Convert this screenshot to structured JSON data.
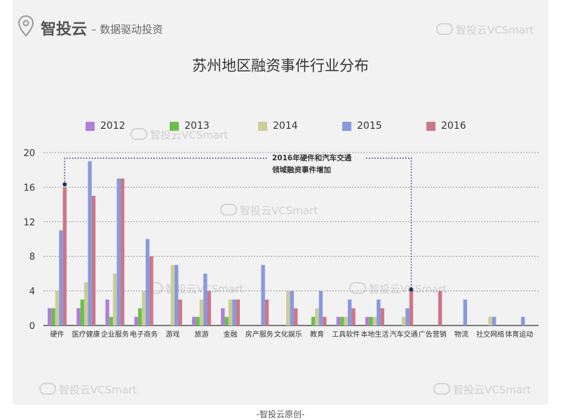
{
  "header": {
    "brand": "智投云",
    "slogan": "– 数据驱动投资",
    "watermark": "智投云VCSmart"
  },
  "footer": "-智投云原创-",
  "annotation": {
    "line1": "2016年硬件和汽车交通",
    "line2": "领域融资事件增加"
  },
  "colors": {
    "2012": "#b07fd8",
    "2013": "#6bbf4c",
    "2014": "#cccc99",
    "2015": "#8899dd",
    "2016": "#cc7788",
    "annotation": "#223366"
  },
  "chart_data": {
    "type": "bar",
    "title": "苏州地区融资事件行业分布",
    "xlabel": "",
    "ylabel": "",
    "ylim": [
      0,
      20
    ],
    "yticks": [
      0,
      4,
      8,
      12,
      16,
      20
    ],
    "grid": true,
    "legend_position": "top",
    "categories": [
      "硬件",
      "医疗健康",
      "企业服务",
      "电子商务",
      "游戏",
      "旅游",
      "金融",
      "房产服务",
      "文化娱乐",
      "教育",
      "工具软件",
      "本地生活",
      "汽车交通",
      "广告营销",
      "物流",
      "社交网络",
      "体育运动"
    ],
    "series": [
      {
        "name": "2012",
        "values": [
          2,
          2,
          3,
          1,
          0,
          1,
          2,
          0,
          0,
          0,
          1,
          1,
          0,
          0,
          0,
          0,
          0
        ]
      },
      {
        "name": "2013",
        "values": [
          2,
          3,
          1,
          2,
          0,
          1,
          1,
          0,
          0,
          1,
          1,
          1,
          0,
          0,
          0,
          0,
          0
        ]
      },
      {
        "name": "2014",
        "values": [
          4,
          5,
          6,
          4,
          7,
          3,
          3,
          0,
          4,
          2,
          1,
          1,
          1,
          0,
          0,
          1,
          0
        ]
      },
      {
        "name": "2015",
        "values": [
          11,
          19,
          17,
          10,
          7,
          6,
          3,
          7,
          4,
          4,
          3,
          3,
          2,
          0,
          3,
          1,
          1
        ]
      },
      {
        "name": "2016",
        "values": [
          16,
          15,
          17,
          8,
          3,
          4,
          3,
          3,
          2,
          1,
          2,
          2,
          4,
          4,
          0,
          0,
          0
        ]
      }
    ]
  }
}
